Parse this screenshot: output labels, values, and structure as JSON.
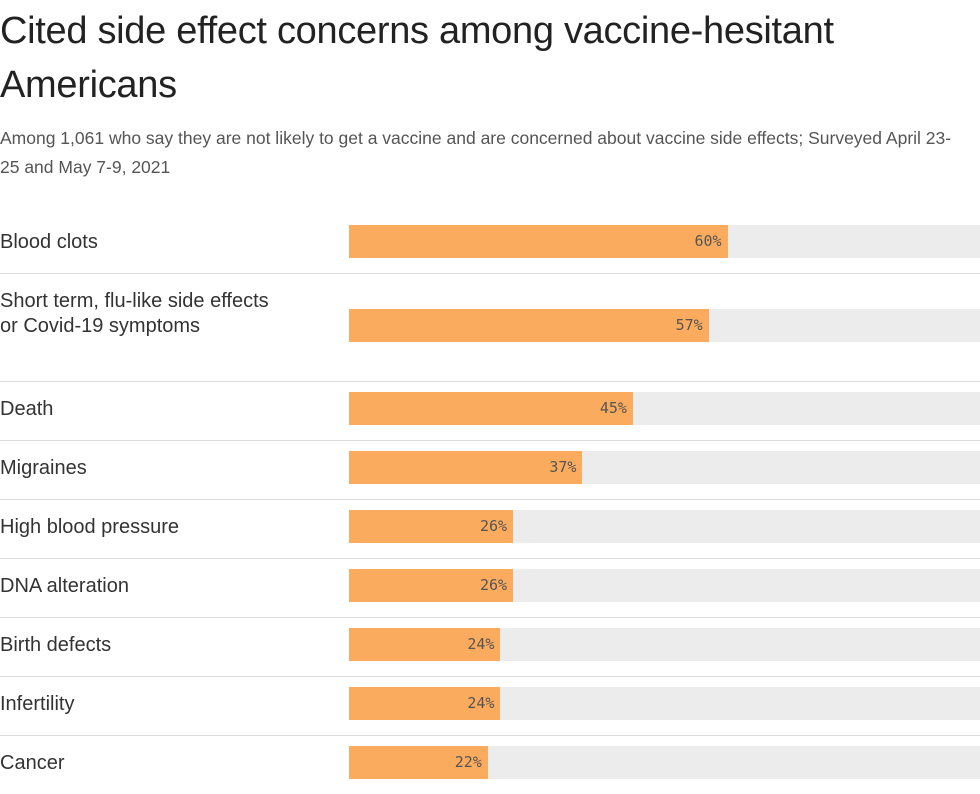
{
  "chart_data": {
    "type": "bar",
    "orientation": "horizontal",
    "title": "Cited side effect concerns among vaccine-hesitant Americans",
    "subtitle": "Among 1,061 who say they are not likely to get a vaccine and are concerned about vaccine side effects; Surveyed April 23-25 and May 7-9, 2021",
    "categories": [
      "Blood clots",
      "Short term, flu-like side effects or Covid-19 symptoms",
      "Death",
      "Migraines",
      "High blood pressure",
      "DNA alteration",
      "Birth defects",
      "Infertility",
      "Cancer"
    ],
    "values": [
      60,
      57,
      45,
      37,
      26,
      26,
      24,
      24,
      22
    ],
    "value_labels": [
      "60%",
      "57%",
      "45%",
      "37%",
      "26%",
      "26%",
      "24%",
      "24%",
      "22%"
    ],
    "xlim": [
      0,
      100
    ],
    "grid": false,
    "colors": {
      "bar": "#fbab5e",
      "track": "#ececec",
      "divider": "#dddddd"
    }
  }
}
